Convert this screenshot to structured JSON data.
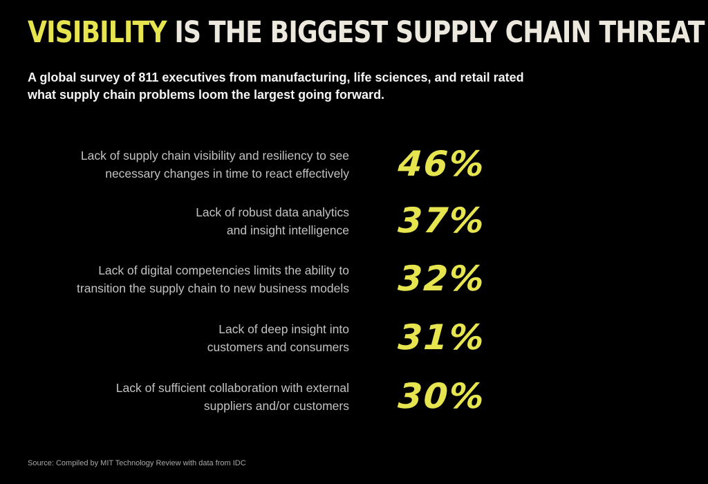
{
  "header": {
    "title_highlight": "VISIBILITY",
    "title_rest": " IS THE BIGGEST SUPPLY CHAIN THREAT",
    "subtitle": "A global survey of 811 executives from manufacturing, life sciences, and retail rated what supply chain problems loom the largest going forward."
  },
  "chart_data": {
    "type": "table",
    "unit": "%",
    "rows": [
      {
        "label": "Lack of supply chain visibility and resiliency to see\nnecessary changes in time to react effectively",
        "value": 46,
        "display": "46%"
      },
      {
        "label": "Lack of robust data analytics\nand insight intelligence",
        "value": 37,
        "display": "37%"
      },
      {
        "label": "Lack of digital competencies limits the ability to\ntransition the supply chain to new business models",
        "value": 32,
        "display": "32%"
      },
      {
        "label": "Lack of deep insight into\ncustomers and consumers",
        "value": 31,
        "display": "31%"
      },
      {
        "label": "Lack of sufficient collaboration with external\nsuppliers and/or customers",
        "value": 30,
        "display": "30%"
      }
    ]
  },
  "footer": {
    "source": "Source: Compiled by MIT Technology Review with data from IDC"
  },
  "colors": {
    "background": "#000000",
    "accent": "#e6e54f",
    "title": "#ece8de",
    "label": "#c3c3c3"
  }
}
